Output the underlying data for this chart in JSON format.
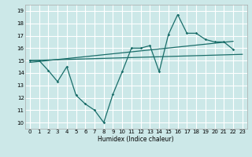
{
  "title": "",
  "xlabel": "Humidex (Indice chaleur)",
  "bg_color": "#cce8e8",
  "grid_color": "#ffffff",
  "line_color": "#1a6e6a",
  "xlim": [
    -0.5,
    23.5
  ],
  "ylim": [
    9.5,
    19.5
  ],
  "xticks": [
    0,
    1,
    2,
    3,
    4,
    5,
    6,
    7,
    8,
    9,
    10,
    11,
    12,
    13,
    14,
    15,
    16,
    17,
    18,
    19,
    20,
    21,
    22,
    23
  ],
  "yticks": [
    10,
    11,
    12,
    13,
    14,
    15,
    16,
    17,
    18,
    19
  ],
  "line1_x": [
    0,
    1,
    2,
    3,
    4,
    5,
    6,
    7,
    8,
    9,
    10,
    11,
    12,
    13,
    14,
    15,
    16,
    17,
    18,
    19,
    20,
    21,
    22
  ],
  "line1_y": [
    15.0,
    15.0,
    14.2,
    13.3,
    14.5,
    12.2,
    11.5,
    11.0,
    10.0,
    12.3,
    14.1,
    16.0,
    16.0,
    16.2,
    14.1,
    17.1,
    18.7,
    17.2,
    17.2,
    16.7,
    16.5,
    16.5,
    15.9
  ],
  "line2_x": [
    0,
    22
  ],
  "line2_y": [
    14.85,
    16.55
  ],
  "line3_x": [
    0,
    23
  ],
  "line3_y": [
    15.0,
    15.5
  ]
}
